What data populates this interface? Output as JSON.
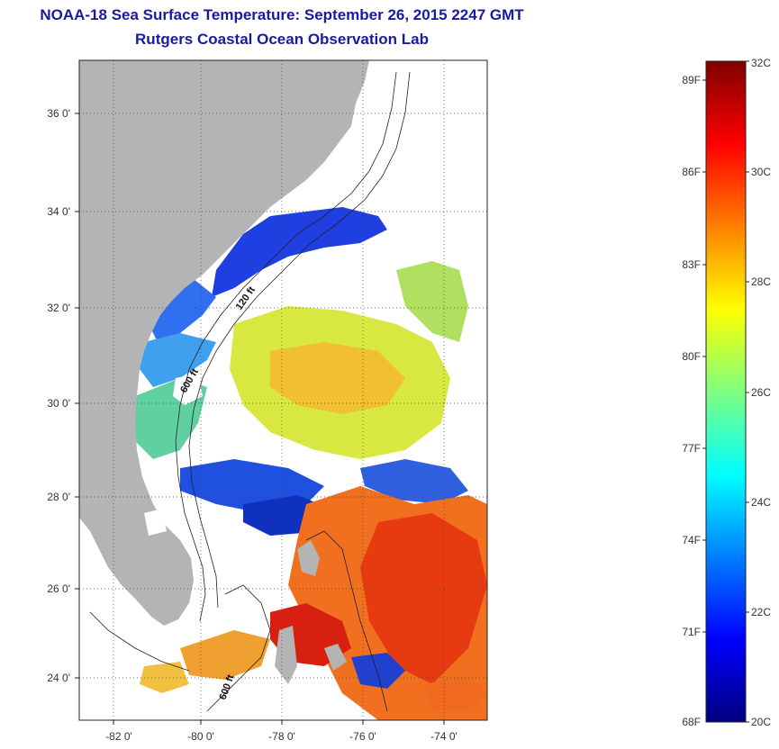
{
  "header": {
    "title": "NOAA-18 Sea Surface Temperature:  September 26, 2015 2247 GMT",
    "subtitle": "Rutgers Coastal Ocean Observation Lab"
  },
  "map": {
    "lat_ticks": [
      "36 0'",
      "34 0'",
      "32 0'",
      "30 0'",
      "28 0'",
      "26 0'",
      "24 0'"
    ],
    "lon_ticks": [
      "-82 0'",
      "-80 0'",
      "-78 0'",
      "-76 0'",
      "-74 0'"
    ],
    "contour_labels": [
      "120 ft",
      "600 ft",
      "600 ft"
    ],
    "land_color": "#b4b4b4",
    "cloud_color": "#ffffff"
  },
  "colorbar": {
    "f_labels": [
      "89F",
      "86F",
      "83F",
      "80F",
      "77F",
      "74F",
      "71F",
      "68F"
    ],
    "c_labels": [
      "32C",
      "30C",
      "28C",
      "26C",
      "24C",
      "22C",
      "20C"
    ],
    "min_c": 20,
    "max_c": 32,
    "colors": [
      "#00007f",
      "#0000ff",
      "#007fff",
      "#00ffff",
      "#7fff7f",
      "#ffff00",
      "#ff7f00",
      "#ff0000",
      "#7f0000"
    ]
  }
}
